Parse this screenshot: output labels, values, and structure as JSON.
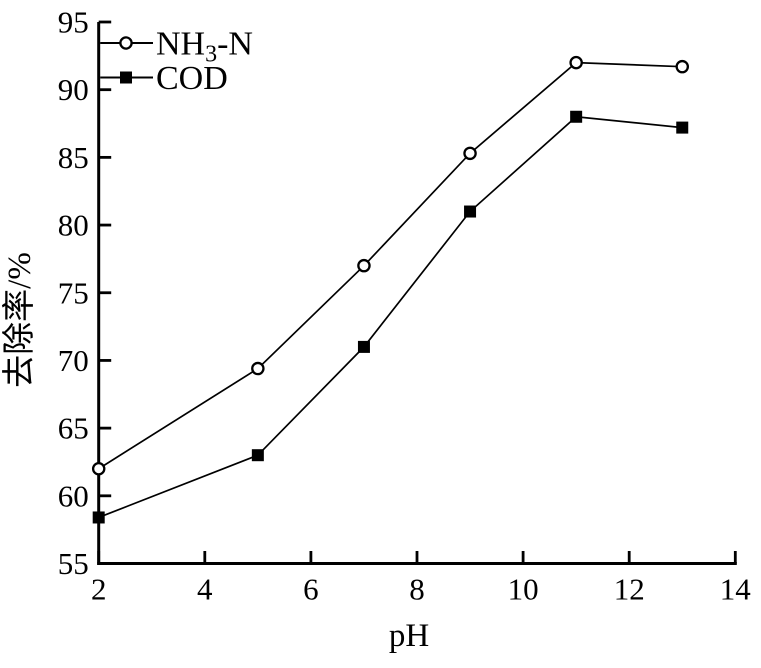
{
  "figure": {
    "background": "#ffffff",
    "ink_color": "#000000"
  },
  "chart_data": {
    "type": "line",
    "title": "",
    "xlabel": "pH",
    "ylabel": "去除率/%",
    "xlim": [
      2,
      14
    ],
    "ylim": [
      55,
      95
    ],
    "x_ticks": [
      2,
      4,
      6,
      8,
      10,
      12,
      14
    ],
    "y_ticks": [
      55,
      60,
      65,
      70,
      75,
      80,
      85,
      90,
      95
    ],
    "grid": false,
    "legend_position": "top-left",
    "x": [
      2,
      5,
      7,
      9,
      11,
      13
    ],
    "series": [
      {
        "name": "NH3-N",
        "label_parts": {
          "prefix": "NH",
          "sub": "3",
          "suffix": "-N"
        },
        "marker": "open-circle",
        "color": "#000000",
        "values": [
          62,
          69.4,
          77,
          85.3,
          92,
          91.7
        ]
      },
      {
        "name": "COD",
        "label_parts": {
          "prefix": "COD",
          "sub": "",
          "suffix": ""
        },
        "marker": "filled-square",
        "color": "#000000",
        "values": [
          58.4,
          63,
          71,
          81,
          88,
          87.2
        ]
      }
    ]
  }
}
